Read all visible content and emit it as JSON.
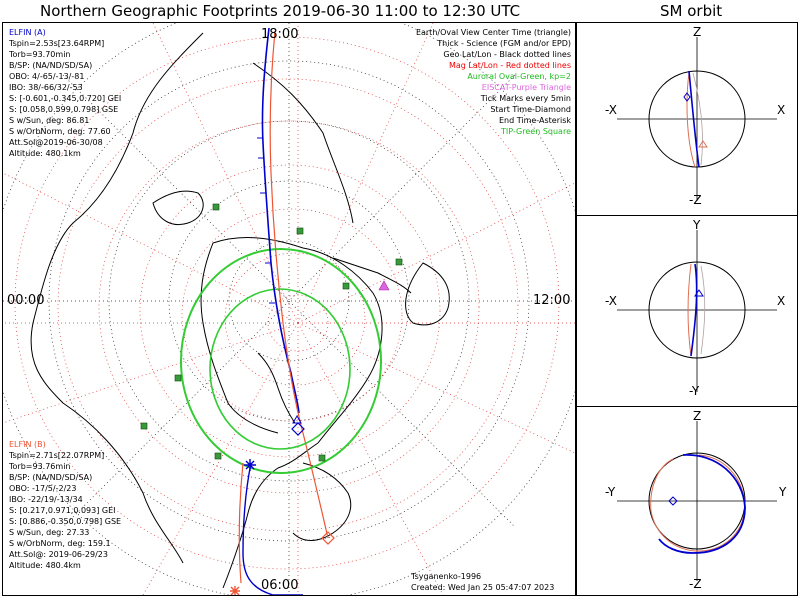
{
  "header": {
    "map_title": "Northern Geographic Footprints 2019-06-30 11:00 to 12:30 UTC",
    "orbit_title": "SM orbit"
  },
  "map": {
    "time_labels": {
      "top": "18:00",
      "left": "00:00",
      "right": "12:00",
      "bottom": "06:00"
    },
    "elfin_a": {
      "name": "ELFIN (A)",
      "color": "#0000cc",
      "lines": [
        "Tspin=2.53s[23.64RPM]",
        "Torb=93.70min",
        "B/SP: (NA/ND/SD/SA)",
        "OBO: 4/-65/-13/-81",
        "IBO: 38/-66/32/-53",
        "S: [-0.601,-0.345,0.720] GEI",
        "S: [0.058,0.599,0.798] GSE",
        "S w/Sun, deg: 86.81",
        "S w/OrbNorm, deg: 77.60",
        "Att.Sol@2019-06-30/08",
        "Altitude: 480.1km"
      ]
    },
    "elfin_b": {
      "name": "ELFIN (B)",
      "color": "#ee5533",
      "lines": [
        "Tspin=2.71s[22.07RPM]",
        "Torb=93.76min",
        "B/SP: (NA/ND/SD/SA)",
        "OBO: -17/5/-2/23",
        "IBO: -22/19/-13/34",
        "S: [0.217,0.971,0.093] GEI",
        "S: [0.886,-0.350,0.798] GSE",
        "S w/Sun, deg: 27.33",
        "S w/OrbNorm, deg: 159.1",
        "Att.Sol@: 2019-06-29/23",
        "Altitude: 480.4km"
      ]
    },
    "legend": [
      {
        "text": "Earth/Oval View Center Time (triangle)",
        "color": "#000000"
      },
      {
        "text": "Thick - Science (FGM and/or EPD)",
        "color": "#000000"
      },
      {
        "text": "Geo Lat/Lon - Black dotted lines",
        "color": "#000000"
      },
      {
        "text": "Mag Lat/Lon - Red dotted lines",
        "color": "#ee0000"
      },
      {
        "text": "Auroral Oval-Green, kp=2",
        "color": "#22bb22"
      },
      {
        "text": "EISCAT-Purple Triangle",
        "color": "#dd66dd"
      },
      {
        "text": "Tick Marks every 5min",
        "color": "#000000"
      },
      {
        "text": "Start Time-Diamond",
        "color": "#000000"
      },
      {
        "text": "End Time-Asterisk",
        "color": "#000000"
      },
      {
        "text": "TIP-Green Square",
        "color": "#22bb22"
      }
    ],
    "credits": {
      "author": "Tsyganenko-1996",
      "created": "Created: Wed Jan 25 05:47:07 2023"
    }
  },
  "orbits": {
    "panel_1": {
      "top": "Z",
      "bottom": "-Z",
      "left": "-X",
      "right": "X"
    },
    "panel_2": {
      "top": "Y",
      "bottom": "-Y",
      "left": "-X",
      "right": "X"
    },
    "panel_3": {
      "top": "Z",
      "bottom": "-Z",
      "left": "-Y",
      "right": "Y"
    }
  }
}
